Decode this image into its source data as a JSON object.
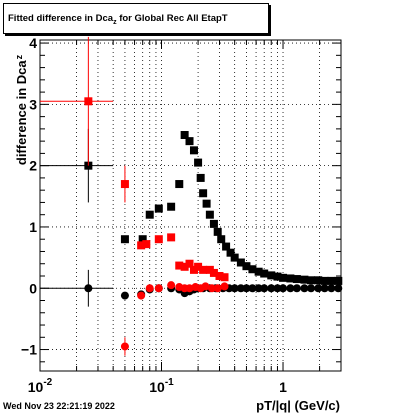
{
  "title": {
    "main": "Fitted difference in Dca",
    "sub": "z",
    "rest": " for Global Rec All EtapT"
  },
  "footer": {
    "timestamp": "Wed Nov 23 22:21:19 2022"
  },
  "chart_data": {
    "type": "scatter",
    "xlabel": "pT/|q| (GeV/c)",
    "ylabel": "difference in Dca",
    "ylabel_sub": "z",
    "xscale": "log",
    "xlim": [
      0.01,
      3.0
    ],
    "ylim": [
      -1.35,
      4.05
    ],
    "grid": true,
    "x_ticks": [
      {
        "value": 0.01,
        "label": "10",
        "sup": "-2"
      },
      {
        "value": 0.1,
        "label": "10",
        "sup": "-1"
      },
      {
        "value": 1,
        "label": "1",
        "sup": ""
      }
    ],
    "y_ticks": [
      {
        "value": -1,
        "label": "−1"
      },
      {
        "value": 0,
        "label": "0"
      },
      {
        "value": 1,
        "label": "1"
      },
      {
        "value": 2,
        "label": "2"
      },
      {
        "value": 3,
        "label": "3"
      },
      {
        "value": 4,
        "label": "4"
      }
    ],
    "series": [
      {
        "color": "#000000",
        "marker": "square",
        "points": [
          {
            "x": 0.025,
            "y": 2.0,
            "xerr": [
              0.01,
              0.04
            ],
            "yerr": 0.6
          },
          {
            "x": 0.05,
            "y": 0.8
          },
          {
            "x": 0.07,
            "y": 0.8
          },
          {
            "x": 0.08,
            "y": 1.2
          },
          {
            "x": 0.095,
            "y": 1.3
          },
          {
            "x": 0.12,
            "y": 1.33
          },
          {
            "x": 0.14,
            "y": 1.7
          },
          {
            "x": 0.155,
            "y": 2.5
          },
          {
            "x": 0.17,
            "y": 2.4
          },
          {
            "x": 0.185,
            "y": 2.25
          },
          {
            "x": 0.2,
            "y": 2.05
          },
          {
            "x": 0.21,
            "y": 1.8
          },
          {
            "x": 0.22,
            "y": 1.55
          },
          {
            "x": 0.235,
            "y": 1.38
          },
          {
            "x": 0.25,
            "y": 1.2
          },
          {
            "x": 0.27,
            "y": 1.05
          },
          {
            "x": 0.29,
            "y": 0.92
          },
          {
            "x": 0.31,
            "y": 0.8
          },
          {
            "x": 0.34,
            "y": 0.68
          },
          {
            "x": 0.37,
            "y": 0.58
          },
          {
            "x": 0.4,
            "y": 0.5
          },
          {
            "x": 0.45,
            "y": 0.42
          },
          {
            "x": 0.5,
            "y": 0.36
          },
          {
            "x": 0.56,
            "y": 0.31
          },
          {
            "x": 0.63,
            "y": 0.27
          },
          {
            "x": 0.7,
            "y": 0.24
          },
          {
            "x": 0.8,
            "y": 0.21
          },
          {
            "x": 0.9,
            "y": 0.19
          },
          {
            "x": 1.0,
            "y": 0.17
          },
          {
            "x": 1.15,
            "y": 0.16
          },
          {
            "x": 1.3,
            "y": 0.15
          },
          {
            "x": 1.5,
            "y": 0.14
          },
          {
            "x": 1.7,
            "y": 0.13
          },
          {
            "x": 1.95,
            "y": 0.13
          },
          {
            "x": 2.2,
            "y": 0.12
          },
          {
            "x": 2.5,
            "y": 0.12
          },
          {
            "x": 2.85,
            "y": 0.12
          }
        ]
      },
      {
        "color": "#ff0000",
        "marker": "square",
        "points": [
          {
            "x": 0.025,
            "y": 3.05,
            "xerr": [
              0.01,
              0.04
            ],
            "yerr": 1.05
          },
          {
            "x": 0.05,
            "y": 1.7,
            "yerr": 0.3
          },
          {
            "x": 0.068,
            "y": 0.7
          },
          {
            "x": 0.075,
            "y": 0.72
          },
          {
            "x": 0.095,
            "y": 0.8
          },
          {
            "x": 0.12,
            "y": 0.83
          },
          {
            "x": 0.14,
            "y": 0.37
          },
          {
            "x": 0.155,
            "y": 0.35
          },
          {
            "x": 0.17,
            "y": 0.4
          },
          {
            "x": 0.185,
            "y": 0.3
          },
          {
            "x": 0.2,
            "y": 0.35
          },
          {
            "x": 0.22,
            "y": 0.3
          },
          {
            "x": 0.25,
            "y": 0.3
          },
          {
            "x": 0.27,
            "y": 0.25
          },
          {
            "x": 0.3,
            "y": 0.2
          },
          {
            "x": 0.33,
            "y": 0.18
          }
        ]
      },
      {
        "color": "#000000",
        "marker": "circle",
        "points": [
          {
            "x": 0.025,
            "y": 0.0,
            "xerr": [
              0.01,
              0.04
            ],
            "yerr": 0.3
          },
          {
            "x": 0.05,
            "y": -0.12
          },
          {
            "x": 0.068,
            "y": -0.1
          },
          {
            "x": 0.08,
            "y": -0.02
          },
          {
            "x": 0.095,
            "y": 0.0
          },
          {
            "x": 0.12,
            "y": 0.0
          },
          {
            "x": 0.14,
            "y": -0.02
          },
          {
            "x": 0.155,
            "y": -0.08
          },
          {
            "x": 0.17,
            "y": -0.05
          },
          {
            "x": 0.185,
            "y": -0.02
          },
          {
            "x": 0.2,
            "y": 0.0
          },
          {
            "x": 0.22,
            "y": 0.0
          },
          {
            "x": 0.25,
            "y": 0.0
          },
          {
            "x": 0.28,
            "y": 0.0
          },
          {
            "x": 0.32,
            "y": 0.0
          },
          {
            "x": 0.36,
            "y": 0.0
          },
          {
            "x": 0.4,
            "y": 0.0
          },
          {
            "x": 0.45,
            "y": 0.0
          },
          {
            "x": 0.5,
            "y": 0.0
          },
          {
            "x": 0.56,
            "y": 0.0
          },
          {
            "x": 0.63,
            "y": 0.0
          },
          {
            "x": 0.7,
            "y": 0.0
          },
          {
            "x": 0.8,
            "y": 0.0
          },
          {
            "x": 0.9,
            "y": 0.0
          },
          {
            "x": 1.0,
            "y": 0.0
          },
          {
            "x": 1.15,
            "y": 0.0
          },
          {
            "x": 1.3,
            "y": 0.0
          },
          {
            "x": 1.5,
            "y": 0.0
          },
          {
            "x": 1.7,
            "y": 0.0
          },
          {
            "x": 1.95,
            "y": 0.0
          },
          {
            "x": 2.2,
            "y": 0.0
          },
          {
            "x": 2.5,
            "y": 0.0
          },
          {
            "x": 2.85,
            "y": 0.0
          }
        ]
      },
      {
        "color": "#ff0000",
        "marker": "circle",
        "points": [
          {
            "x": 0.05,
            "y": -0.95,
            "yerr": 0.15
          },
          {
            "x": 0.068,
            "y": -0.12
          },
          {
            "x": 0.08,
            "y": 0.0
          },
          {
            "x": 0.095,
            "y": 0.0
          },
          {
            "x": 0.12,
            "y": 0.05
          },
          {
            "x": 0.14,
            "y": 0.02
          },
          {
            "x": 0.155,
            "y": 0.0
          },
          {
            "x": 0.17,
            "y": 0.0
          },
          {
            "x": 0.19,
            "y": 0.02
          },
          {
            "x": 0.21,
            "y": 0.0
          },
          {
            "x": 0.23,
            "y": 0.03
          },
          {
            "x": 0.26,
            "y": 0.0
          },
          {
            "x": 0.29,
            "y": 0.0
          },
          {
            "x": 0.33,
            "y": 0.03
          }
        ]
      }
    ]
  }
}
